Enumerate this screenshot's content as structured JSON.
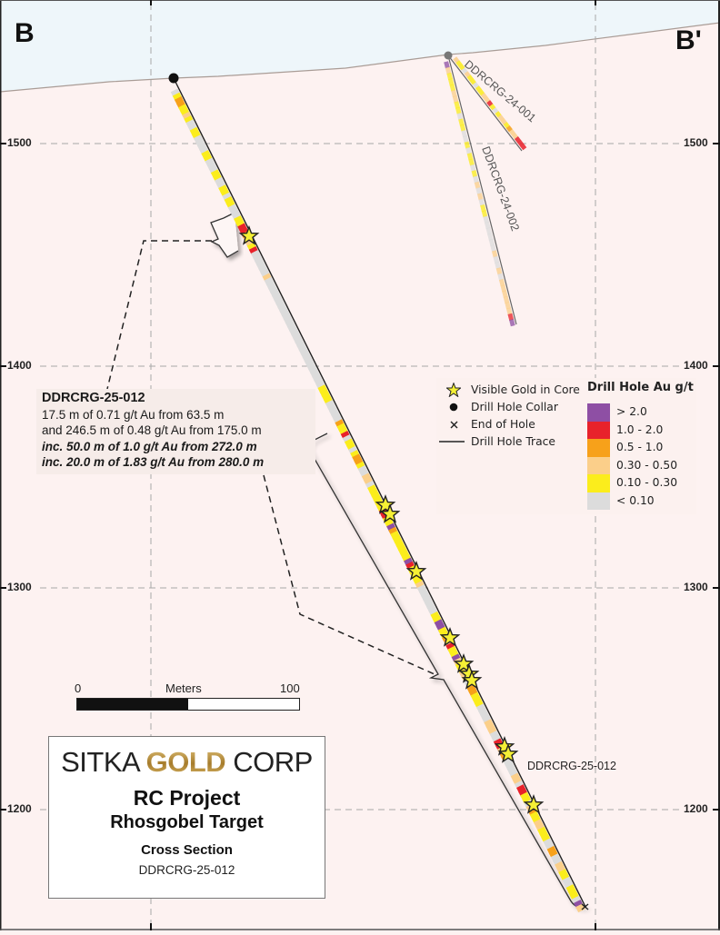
{
  "section": {
    "start_label": "B",
    "end_label": "B'",
    "colors": {
      "sky": "#eef6fa",
      "ground": "#fdf2f1",
      "topography_line": "#a99c96",
      "gridline": "#a8a8a8"
    }
  },
  "elevation_axis": {
    "unit": "m",
    "ticks": [
      {
        "value": "1500",
        "label_left": "1500",
        "label_right": "1500"
      },
      {
        "value": "1400",
        "label_left": "1400",
        "label_right": "1400"
      },
      {
        "value": "1300",
        "label_left": "1300",
        "label_right": "1300"
      },
      {
        "value": "1200",
        "label_left": "1200",
        "label_right": "1200"
      }
    ]
  },
  "drill_holes": [
    {
      "id": "DDRCRG-25-012",
      "label": "DDRCRG-25-012",
      "collar": "black",
      "visible_gold_stars": 11
    },
    {
      "id": "DDRCRG-24-001",
      "label": "DDRCRG-24-001",
      "collar": "grey"
    },
    {
      "id": "DDRCRG-24-002",
      "label": "DDRCRG-24-002",
      "collar": "grey"
    }
  ],
  "callout": {
    "title": "DDRCRG-25-012",
    "lines": [
      "17.5 m of 0.71 g/t Au from 63.5 m",
      "and 246.5 m of 0.48 g/t Au from 175.0 m"
    ],
    "includes": [
      "inc. 50.0 m of 1.0 g/t Au from 272.0 m",
      "inc. 20.0 m of 1.83 g/t Au from 280.0 m"
    ]
  },
  "legend": {
    "symbols": [
      {
        "icon": "star-icon",
        "label": "Visible Gold in Core"
      },
      {
        "icon": "collar-dot-icon",
        "label": "Drill Hole Collar"
      },
      {
        "icon": "end-of-hole-x-icon",
        "label": "End of Hole"
      },
      {
        "icon": "trace-line-icon",
        "label": "Drill Hole Trace"
      }
    ],
    "grade_title": "Drill Hole Au g/t",
    "grades": [
      {
        "label": "> 2.0",
        "color": "#8e4fa4"
      },
      {
        "label": "1.0 - 2.0",
        "color": "#e8222b"
      },
      {
        "label": "0.5 - 1.0",
        "color": "#f7a11a"
      },
      {
        "label": "0.30 - 0.50",
        "color": "#fbcf8a"
      },
      {
        "label": "0.10 - 0.30",
        "color": "#fbed1c"
      },
      {
        "label": "< 0.10",
        "color": "#dcdcdc"
      }
    ]
  },
  "scale_bar": {
    "min": "0",
    "title": "Meters",
    "max": "100"
  },
  "title_block": {
    "logo_left": "SITKA",
    "logo_gold": "GOLD",
    "logo_right": "CORP",
    "project": "RC Project",
    "target": "Rhosgobel Target",
    "type": "Cross Section",
    "hole": "DDRCRG-25-012"
  }
}
